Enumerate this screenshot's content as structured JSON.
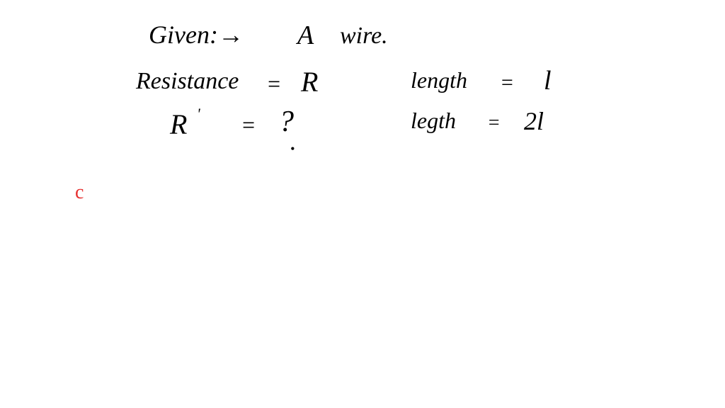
{
  "line1": {
    "given": "Given:→",
    "a": "A",
    "wire": "wire."
  },
  "line2": {
    "resistance": "Resistance",
    "eq1": "=",
    "r": "R",
    "length": "length",
    "eq2": "=",
    "l": "l"
  },
  "line3": {
    "rprime": "R",
    "prime": "'",
    "eq": "=",
    "q": "?",
    "dot": "•",
    "legth": "legth",
    "eq2": "=",
    "twol": "2l"
  },
  "redmark": "c",
  "colors": {
    "ink": "#000000",
    "red": "#e63030",
    "background": "#ffffff"
  },
  "typography": {
    "family": "Comic Sans MS",
    "base_size_pt": 34
  }
}
